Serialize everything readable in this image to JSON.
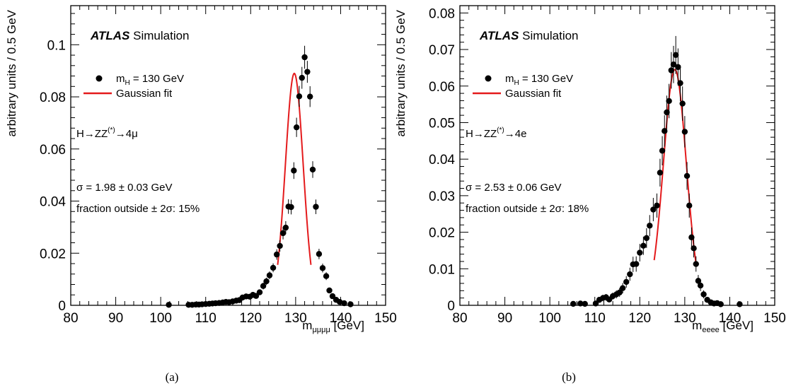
{
  "chart_data": [
    {
      "type": "scatter",
      "panel_label": "(a)",
      "experiment": "ATLAS",
      "experiment_suffix": "Simulation",
      "process": "H→ZZ(*)→4μ",
      "xlabel": "mμμμμ [GeV]",
      "ylabel": "arbitrary units / 0.5 GeV",
      "xlim": [
        80,
        150
      ],
      "ylim": [
        0,
        0.115
      ],
      "xticks": [
        80,
        90,
        100,
        110,
        120,
        130,
        140,
        150
      ],
      "yticks": [
        0,
        0.02,
        0.04,
        0.06,
        0.08,
        0.1
      ],
      "grid": false,
      "legend": [
        {
          "label": "mH = 130 GeV",
          "marker": "circle",
          "color": "#000000"
        },
        {
          "label": "Gaussian fit",
          "marker": "line",
          "color": "#e41a1c"
        }
      ],
      "annotations": [
        "σ = 1.98 ± 0.03 GeV",
        "fraction outside ± 2σ: 15%"
      ],
      "fit": {
        "mean": 129.7,
        "sigma": 1.98,
        "amplitude": 0.089,
        "range": [
          126.0,
          133.4
        ]
      },
      "series": [
        {
          "name": "mH = 130 GeV",
          "x": [
            101.8,
            106.2,
            107.0,
            107.8,
            108.5,
            109.2,
            110.0,
            110.8,
            111.5,
            112.2,
            113.0,
            113.8,
            114.5,
            115.2,
            116.0,
            116.8,
            117.5,
            118.2,
            119.0,
            119.8,
            120.5,
            121.2,
            122.0,
            122.8,
            123.5,
            124.2,
            125.0,
            125.8,
            126.5,
            127.2,
            127.8,
            128.4,
            129.0,
            129.6,
            130.2,
            130.8,
            131.4,
            132.0,
            132.6,
            133.2,
            133.8,
            134.5,
            135.2,
            136.0,
            136.8,
            137.5,
            138.2,
            139.0,
            139.8,
            140.8,
            142.2
          ],
          "y": [
            0.0002,
            0.0002,
            0.0002,
            0.0003,
            0.0003,
            0.0004,
            0.0005,
            0.0006,
            0.0007,
            0.0008,
            0.0009,
            0.0011,
            0.0013,
            0.0012,
            0.0015,
            0.0018,
            0.002,
            0.003,
            0.0034,
            0.0033,
            0.004,
            0.0036,
            0.005,
            0.0074,
            0.0092,
            0.0115,
            0.0144,
            0.0195,
            0.0228,
            0.0277,
            0.0298,
            0.0379,
            0.0377,
            0.0517,
            0.0683,
            0.0802,
            0.0873,
            0.0952,
            0.0896,
            0.0801,
            0.0521,
            0.0378,
            0.0197,
            0.0143,
            0.0112,
            0.0057,
            0.0035,
            0.0021,
            0.0013,
            0.0008,
            0.0004
          ],
          "yerr": [
            0.0003,
            0.0003,
            0.0003,
            0.0003,
            0.0003,
            0.0003,
            0.0004,
            0.0004,
            0.0004,
            0.0005,
            0.0005,
            0.0005,
            0.0006,
            0.0006,
            0.0006,
            0.0007,
            0.0007,
            0.0008,
            0.0009,
            0.0009,
            0.0009,
            0.0009,
            0.0011,
            0.0013,
            0.0014,
            0.0015,
            0.0017,
            0.002,
            0.0022,
            0.0024,
            0.0025,
            0.0028,
            0.0028,
            0.0032,
            0.0037,
            0.004,
            0.0042,
            0.0044,
            0.0042,
            0.004,
            0.0032,
            0.0028,
            0.002,
            0.0017,
            0.0015,
            0.0011,
            0.0009,
            0.0007,
            0.0005,
            0.0004,
            0.0003
          ]
        }
      ]
    },
    {
      "type": "scatter",
      "panel_label": "(b)",
      "experiment": "ATLAS",
      "experiment_suffix": "Simulation",
      "process": "H→ZZ(*)→4e",
      "xlabel": "meeee [GeV]",
      "ylabel": "arbitrary units / 0.5 GeV",
      "xlim": [
        80,
        150
      ],
      "ylim": [
        0,
        0.082
      ],
      "xticks": [
        80,
        90,
        100,
        110,
        120,
        130,
        140,
        150
      ],
      "yticks": [
        0,
        0.01,
        0.02,
        0.03,
        0.04,
        0.05,
        0.06,
        0.07,
        0.08
      ],
      "grid": false,
      "legend": [
        {
          "label": "mH = 130 GeV",
          "marker": "circle",
          "color": "#000000"
        },
        {
          "label": "Gaussian fit",
          "marker": "line",
          "color": "#e41a1c"
        }
      ],
      "annotations": [
        "σ = 2.53 ± 0.06 GeV",
        "fraction outside ± 2σ: 18%"
      ],
      "fit": {
        "mean": 127.8,
        "sigma": 2.53,
        "amplitude": 0.0645,
        "range": [
          123.2,
          132.6
        ]
      },
      "series": [
        {
          "name": "mH = 130 GeV",
          "x": [
            105.2,
            106.8,
            107.8,
            110.2,
            111.0,
            111.8,
            112.5,
            113.2,
            114.0,
            114.8,
            115.5,
            116.2,
            117.0,
            117.8,
            118.5,
            119.2,
            120.0,
            120.8,
            121.5,
            122.2,
            123.0,
            123.8,
            124.5,
            125.0,
            125.5,
            126.0,
            126.5,
            127.0,
            127.5,
            128.0,
            128.5,
            129.0,
            129.5,
            130.0,
            130.5,
            131.0,
            131.5,
            132.0,
            132.5,
            133.0,
            133.5,
            134.2,
            135.0,
            135.8,
            136.5,
            137.2,
            138.0,
            142.2
          ],
          "y": [
            0.0004,
            0.0005,
            0.0004,
            0.0005,
            0.0015,
            0.002,
            0.0022,
            0.0016,
            0.0025,
            0.003,
            0.0035,
            0.0047,
            0.0064,
            0.0085,
            0.0112,
            0.0113,
            0.0144,
            0.0163,
            0.0184,
            0.0218,
            0.0262,
            0.0273,
            0.0363,
            0.0423,
            0.0477,
            0.0528,
            0.0559,
            0.0643,
            0.0659,
            0.0685,
            0.0652,
            0.0608,
            0.0552,
            0.0475,
            0.0354,
            0.0273,
            0.0186,
            0.0156,
            0.0113,
            0.0067,
            0.0054,
            0.003,
            0.0015,
            0.0008,
            0.0005,
            0.0006,
            0.0003,
            0.0003
          ],
          "yerr": [
            0.0004,
            0.0004,
            0.0004,
            0.0004,
            0.0008,
            0.0009,
            0.0009,
            0.0008,
            0.001,
            0.0011,
            0.0012,
            0.0014,
            0.0016,
            0.0018,
            0.0021,
            0.0021,
            0.0024,
            0.0025,
            0.0027,
            0.0029,
            0.0032,
            0.0033,
            0.0038,
            0.004,
            0.0043,
            0.0046,
            0.0047,
            0.005,
            0.0051,
            0.0052,
            0.0051,
            0.0049,
            0.0047,
            0.0043,
            0.0038,
            0.0033,
            0.0027,
            0.0025,
            0.0021,
            0.0016,
            0.0015,
            0.0011,
            0.0008,
            0.0006,
            0.0004,
            0.0005,
            0.0003,
            0.0003
          ]
        }
      ]
    }
  ]
}
